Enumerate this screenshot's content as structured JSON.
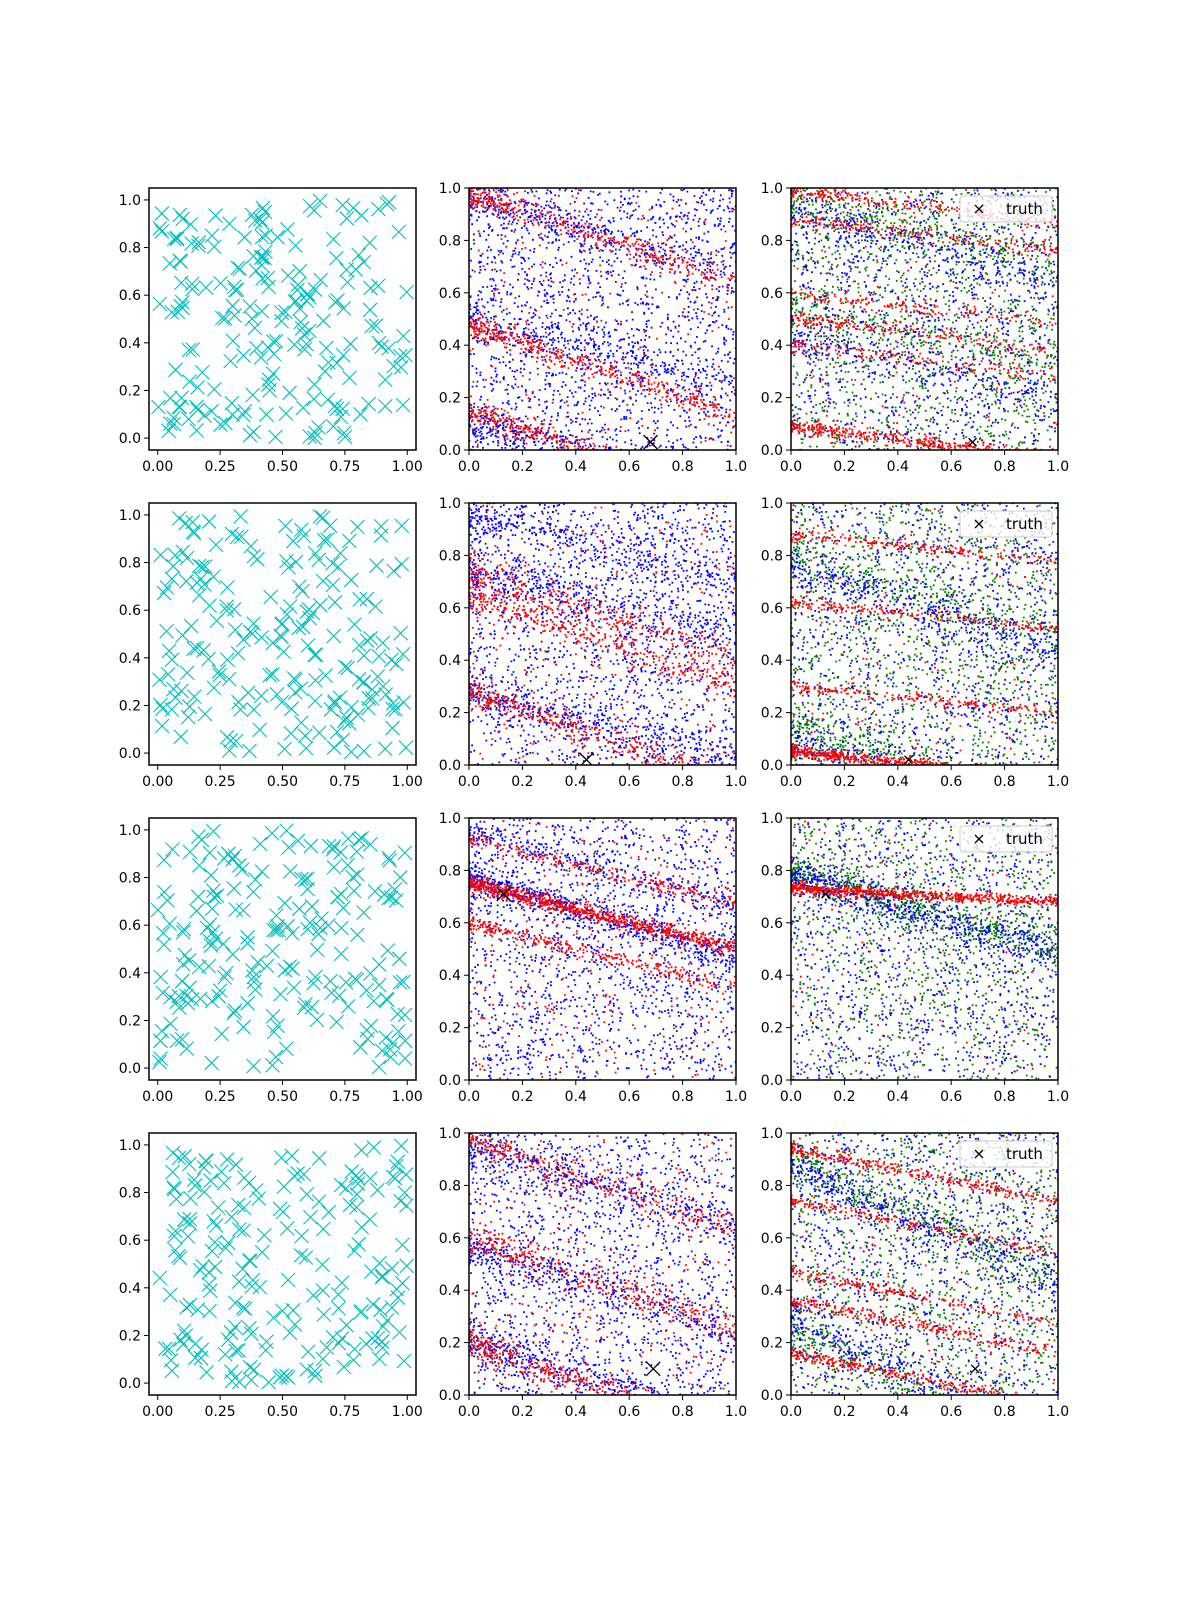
{
  "figure": {
    "layout": "4 rows x 3 columns of scatter plots",
    "colors": {
      "samples": "#00bfbf",
      "red": "#ff0000",
      "blue": "#0000ff",
      "green": "#008000",
      "truth": "#000000"
    }
  },
  "chart_data": [
    {
      "type": "scatter",
      "row": 1,
      "col": 1,
      "xticks": [
        "0.00",
        "0.25",
        "0.50",
        "0.75",
        "1.00"
      ],
      "yticks": [
        "0.0",
        "0.2",
        "0.4",
        "0.6",
        "0.8",
        "1.0"
      ],
      "xlim": [
        -0.035,
        1.035
      ],
      "ylim": [
        -0.05,
        1.05
      ],
      "series": [
        {
          "color": "#00bfbf",
          "marker": "x",
          "count": 200,
          "seed": 11,
          "distribution": "uniform"
        }
      ]
    },
    {
      "type": "scatter",
      "row": 1,
      "col": 2,
      "xticks": [
        "0.0",
        "0.2",
        "0.4",
        "0.6",
        "0.8",
        "1.0"
      ],
      "yticks": [
        "0.0",
        "0.2",
        "0.4",
        "0.6",
        "0.8",
        "1.0"
      ],
      "xlim": [
        0,
        1
      ],
      "ylim": [
        0,
        1
      ],
      "truth": [
        0.68,
        0.03
      ],
      "bands": [
        {
          "color": "#0000ff",
          "background": 1700,
          "y0": [
            0.95,
            0.5,
            0.1
          ],
          "slope": -0.25,
          "width": 0.035,
          "count": [
            250,
            250,
            350
          ]
        },
        {
          "color": "#ff0000",
          "background": 300,
          "y0": [
            0.98,
            0.48,
            0.15
          ],
          "slope": -0.35,
          "width": 0.025,
          "count": [
            400,
            450,
            450
          ]
        }
      ]
    },
    {
      "type": "scatter",
      "row": 1,
      "col": 3,
      "xticks": [
        "0.0",
        "0.2",
        "0.4",
        "0.6",
        "0.8",
        "1.0"
      ],
      "yticks": [
        "0.0",
        "0.2",
        "0.4",
        "0.6",
        "0.8",
        "1.0"
      ],
      "xlim": [
        0,
        1
      ],
      "ylim": [
        0,
        1
      ],
      "truth": [
        0.68,
        0.03
      ],
      "legend": {
        "label": "truth",
        "loc": "upper right"
      },
      "bands": [
        {
          "color": "#008000",
          "background": 1200,
          "y0": [
            0.95,
            0.55
          ],
          "slope": -0.25,
          "width": 0.04,
          "count": [
            250,
            200
          ]
        },
        {
          "color": "#0000ff",
          "background": 1100,
          "y0": [
            0.9,
            0.45
          ],
          "slope": -0.25,
          "width": 0.04,
          "count": [
            250,
            200
          ]
        },
        {
          "color": "#ff0000",
          "background": 150,
          "y0": [
            0.99,
            0.88,
            0.6,
            0.5,
            0.4,
            0.09
          ],
          "slope": -0.12,
          "width": 0.015,
          "count": [
            250,
            200,
            150,
            200,
            150,
            450
          ]
        }
      ]
    },
    {
      "type": "scatter",
      "row": 2,
      "col": 1,
      "xticks": [
        "0.00",
        "0.25",
        "0.50",
        "0.75",
        "1.00"
      ],
      "yticks": [
        "0.0",
        "0.2",
        "0.4",
        "0.6",
        "0.8",
        "1.0"
      ],
      "xlim": [
        -0.035,
        1.035
      ],
      "ylim": [
        -0.05,
        1.05
      ],
      "series": [
        {
          "color": "#00bfbf",
          "marker": "x",
          "count": 200,
          "seed": 23,
          "distribution": "uniform"
        }
      ]
    },
    {
      "type": "scatter",
      "row": 2,
      "col": 2,
      "xticks": [
        "0.0",
        "0.2",
        "0.4",
        "0.6",
        "0.8",
        "1.0"
      ],
      "yticks": [
        "0.0",
        "0.2",
        "0.4",
        "0.6",
        "0.8",
        "1.0"
      ],
      "xlim": [
        0,
        1
      ],
      "ylim": [
        0,
        1
      ],
      "truth": [
        0.44,
        0.02
      ],
      "bands": [
        {
          "color": "#0000ff",
          "background": 1600,
          "y0": [
            0.95,
            0.75,
            0.28
          ],
          "slope": -0.25,
          "width": 0.04,
          "count": [
            300,
            300,
            350
          ]
        },
        {
          "color": "#ff0000",
          "background": 350,
          "y0": [
            0.75,
            0.65,
            0.28
          ],
          "slope": -0.35,
          "width": 0.03,
          "count": [
            300,
            350,
            400
          ]
        }
      ]
    },
    {
      "type": "scatter",
      "row": 2,
      "col": 3,
      "xticks": [
        "0.0",
        "0.2",
        "0.4",
        "0.6",
        "0.8",
        "1.0"
      ],
      "yticks": [
        "0.0",
        "0.2",
        "0.4",
        "0.6",
        "0.8",
        "1.0"
      ],
      "xlim": [
        0,
        1
      ],
      "ylim": [
        0,
        1
      ],
      "truth": [
        0.44,
        0.02
      ],
      "legend": {
        "label": "truth",
        "loc": "upper right"
      },
      "bands": [
        {
          "color": "#008000",
          "background": 1200,
          "y0": [
            0.8,
            0.15
          ],
          "slope": -0.3,
          "width": 0.04,
          "count": [
            250,
            250
          ]
        },
        {
          "color": "#0000ff",
          "background": 1100,
          "y0": [
            0.75,
            0.08
          ],
          "slope": -0.3,
          "width": 0.04,
          "count": [
            300,
            250
          ]
        },
        {
          "color": "#ff0000",
          "background": 150,
          "y0": [
            0.88,
            0.62,
            0.3,
            0.05
          ],
          "slope": -0.1,
          "width": 0.012,
          "count": [
            200,
            200,
            200,
            600
          ]
        }
      ]
    },
    {
      "type": "scatter",
      "row": 3,
      "col": 1,
      "xticks": [
        "0.00",
        "0.25",
        "0.50",
        "0.75",
        "1.00"
      ],
      "yticks": [
        "0.0",
        "0.2",
        "0.4",
        "0.6",
        "0.8",
        "1.0"
      ],
      "xlim": [
        -0.035,
        1.035
      ],
      "ylim": [
        -0.05,
        1.05
      ],
      "series": [
        {
          "color": "#00bfbf",
          "marker": "x",
          "count": 200,
          "seed": 37,
          "distribution": "uniform"
        }
      ]
    },
    {
      "type": "scatter",
      "row": 3,
      "col": 2,
      "xticks": [
        "0.0",
        "0.2",
        "0.4",
        "0.6",
        "0.8",
        "1.0"
      ],
      "yticks": [
        "0.0",
        "0.2",
        "0.4",
        "0.6",
        "0.8",
        "1.0"
      ],
      "xlim": [
        0,
        1
      ],
      "ylim": [
        0,
        1
      ],
      "truth": [
        0.13,
        0.71
      ],
      "bands": [
        {
          "color": "#0000ff",
          "background": 1500,
          "y0": [
            0.77,
            0.95
          ],
          "slope": -0.3,
          "width": 0.03,
          "count": [
            600,
            250
          ]
        },
        {
          "color": "#ff0000",
          "background": 350,
          "y0": [
            0.75,
            0.6,
            0.92
          ],
          "slope": -0.25,
          "width": 0.015,
          "count": [
            800,
            300,
            200
          ]
        }
      ]
    },
    {
      "type": "scatter",
      "row": 3,
      "col": 3,
      "xticks": [
        "0.0",
        "0.2",
        "0.4",
        "0.6",
        "0.8",
        "1.0"
      ],
      "yticks": [
        "0.0",
        "0.2",
        "0.4",
        "0.6",
        "0.8",
        "1.0"
      ],
      "xlim": [
        0,
        1
      ],
      "ylim": [
        0,
        1
      ],
      "truth": [
        0.13,
        0.71
      ],
      "legend": {
        "label": "truth",
        "loc": "upper right"
      },
      "bands": [
        {
          "color": "#008000",
          "background": 1000,
          "y0": [
            0.8
          ],
          "slope": -0.3,
          "width": 0.035,
          "count": [
            500
          ]
        },
        {
          "color": "#0000ff",
          "background": 1100,
          "y0": [
            0.78
          ],
          "slope": -0.3,
          "width": 0.035,
          "count": [
            500
          ]
        },
        {
          "color": "#ff0000",
          "background": 120,
          "y0": [
            0.73
          ],
          "slope": -0.05,
          "width": 0.01,
          "count": [
            700
          ]
        }
      ]
    },
    {
      "type": "scatter",
      "row": 4,
      "col": 1,
      "xticks": [
        "0.00",
        "0.25",
        "0.50",
        "0.75",
        "1.00"
      ],
      "yticks": [
        "0.0",
        "0.2",
        "0.4",
        "0.6",
        "0.8",
        "1.0"
      ],
      "xlim": [
        -0.035,
        1.035
      ],
      "ylim": [
        -0.05,
        1.05
      ],
      "series": [
        {
          "color": "#00bfbf",
          "marker": "x",
          "count": 200,
          "seed": 53,
          "distribution": "uniform"
        }
      ]
    },
    {
      "type": "scatter",
      "row": 4,
      "col": 2,
      "xticks": [
        "0.0",
        "0.2",
        "0.4",
        "0.6",
        "0.8",
        "1.0"
      ],
      "yticks": [
        "0.0",
        "0.2",
        "0.4",
        "0.6",
        "0.8",
        "1.0"
      ],
      "xlim": [
        0,
        1
      ],
      "ylim": [
        0,
        1
      ],
      "truth": [
        0.69,
        0.1
      ],
      "bands": [
        {
          "color": "#0000ff",
          "background": 1500,
          "y0": [
            0.95,
            0.55,
            0.2
          ],
          "slope": -0.3,
          "width": 0.04,
          "count": [
            300,
            300,
            350
          ]
        },
        {
          "color": "#ff0000",
          "background": 350,
          "y0": [
            0.98,
            0.6,
            0.2
          ],
          "slope": -0.35,
          "width": 0.03,
          "count": [
            300,
            350,
            450
          ]
        }
      ]
    },
    {
      "type": "scatter",
      "row": 4,
      "col": 3,
      "xticks": [
        "0.0",
        "0.2",
        "0.4",
        "0.6",
        "0.8",
        "1.0"
      ],
      "yticks": [
        "0.0",
        "0.2",
        "0.4",
        "0.6",
        "0.8",
        "1.0"
      ],
      "xlim": [
        0,
        1
      ],
      "ylim": [
        0,
        1
      ],
      "truth": [
        0.69,
        0.1
      ],
      "legend": {
        "label": "truth",
        "loc": "upper right"
      },
      "bands": [
        {
          "color": "#008000",
          "background": 1100,
          "y0": [
            0.9,
            0.25
          ],
          "slope": -0.45,
          "width": 0.04,
          "count": [
            300,
            250
          ]
        },
        {
          "color": "#0000ff",
          "background": 1100,
          "y0": [
            0.88,
            0.3
          ],
          "slope": -0.45,
          "width": 0.04,
          "count": [
            300,
            250
          ]
        },
        {
          "color": "#ff0000",
          "background": 150,
          "y0": [
            0.94,
            0.74,
            0.47,
            0.36,
            0.16
          ],
          "slope": -0.2,
          "width": 0.012,
          "count": [
            300,
            200,
            200,
            250,
            300
          ]
        }
      ]
    }
  ]
}
